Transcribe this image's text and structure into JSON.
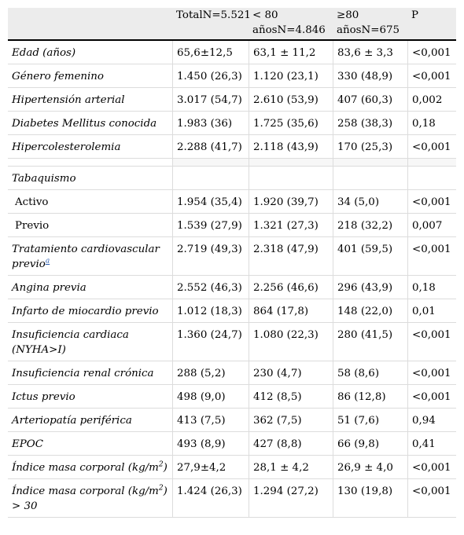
{
  "header": [
    "TotalN=5.521",
    "< 80 añosN=4.846",
    "≥80 añosN=675",
    "P"
  ],
  "rows": [
    {
      "label": "Edad (años)",
      "v": [
        "65,6±12,5",
        "63,1 ± 11,2",
        "83,6 ± 3,3",
        "<0,001"
      ]
    },
    {
      "label": "Género femenino",
      "v": [
        "1.450 (26,3)",
        "1.120 (23,1)",
        "330 (48,9)",
        "<0,001"
      ]
    },
    {
      "label": "Hipertensión arterial",
      "v": [
        "3.017 (54,7)",
        "2.610 (53,9)",
        "407 (60,3)",
        "0,002"
      ]
    },
    {
      "label": "Diabetes Mellitus conocida",
      "v": [
        "1.983 (36)",
        "1.725 (35,6)",
        "258 (38,3)",
        "0,18"
      ]
    },
    {
      "label": "Hipercolesterolemia",
      "v": [
        "2.288 (41,7)",
        "2.118 (43,9)",
        "170 (25,3)",
        "<0,001"
      ]
    },
    {
      "label": "Tabaquismo",
      "v": [
        "",
        "",
        "",
        ""
      ]
    },
    {
      "label": "Activo",
      "v": [
        "1.954 (35,4)",
        "1.920 (39,7)",
        "34 (5,0)",
        "<0,001"
      ]
    },
    {
      "label": "Previo",
      "v": [
        "1.539 (27,9)",
        "1.321 (27,3)",
        "218 (32,2)",
        "0,007"
      ]
    },
    {
      "label": "Tratamiento cardiovascular previo",
      "fn": "a",
      "v": [
        "2.719 (49,3)",
        "2.318 (47,9)",
        "401 (59,5)",
        "<0,001"
      ]
    },
    {
      "label": "Angina previa",
      "v": [
        "2.552 (46,3)",
        "2.256 (46,6)",
        "296 (43,9)",
        "0,18"
      ]
    },
    {
      "label": "Infarto de miocardio previo",
      "v": [
        "1.012 (18,3)",
        "864 (17,8)",
        "148 (22,0)",
        "0,01"
      ]
    },
    {
      "label": "Insuficiencia cardiaca (NYHA>I)",
      "v": [
        "1.360 (24,7)",
        "1.080 (22,3)",
        "280 (41,5)",
        "<0,001"
      ]
    },
    {
      "label": "Insuficiencia renal crónica",
      "v": [
        "288 (5,2)",
        "230 (4,7)",
        "58 (8,6)",
        "<0,001"
      ]
    },
    {
      "label": "Ictus previo",
      "v": [
        "498 (9,0)",
        "412 (8,5)",
        "86 (12,8)",
        "<0,001"
      ]
    },
    {
      "label": "Arteriopatía periférica",
      "v": [
        "413 (7,5)",
        "362 (7,5)",
        "51 (7,6)",
        "0,94"
      ]
    },
    {
      "label": "EPOC",
      "v": [
        "493 (8,9)",
        "427 (8,8)",
        "66 (9,8)",
        "0,41"
      ]
    },
    {
      "label": "Índice masa corporal (kg/m",
      "sup": "2",
      "label_after": ")",
      "v": [
        "27,9±4,2",
        "28,1 ± 4,2",
        "26,9 ± 4,0",
        "<0,001"
      ]
    },
    {
      "label": "Índice masa corporal (kg/m",
      "sup": "2",
      "label_after": ") > 30",
      "v": [
        "1.424 (26,3)",
        "1.294 (27,2)",
        "130 (19,8)",
        "<0,001"
      ]
    }
  ]
}
